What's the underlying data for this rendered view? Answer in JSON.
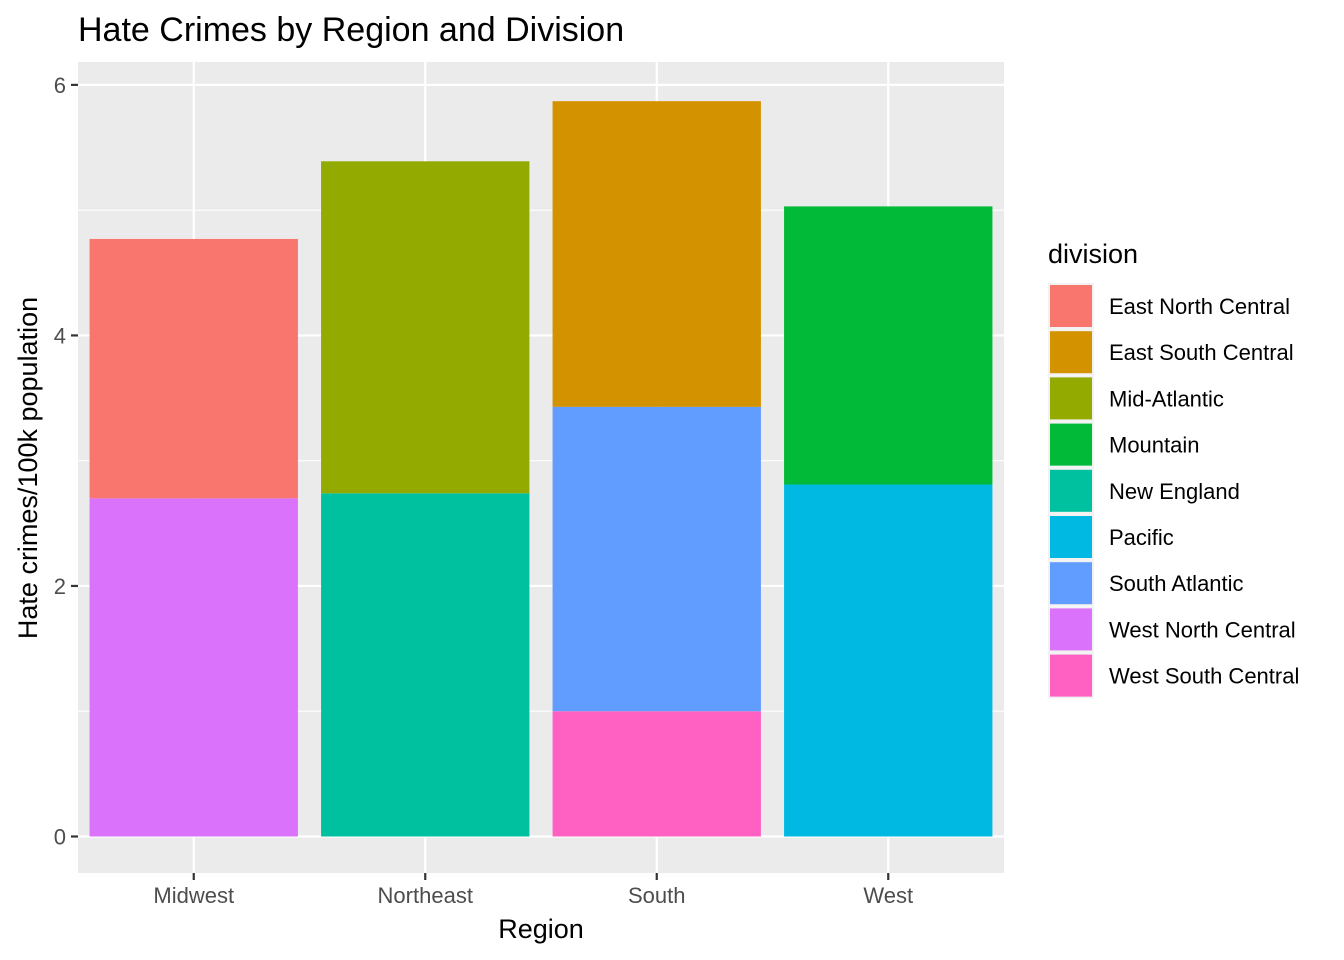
{
  "chart_data": {
    "type": "bar",
    "stacked": true,
    "title": "Hate Crimes by Region and Division",
    "xlabel": "Region",
    "ylabel": "Hate crimes/100k population",
    "categories": [
      "Midwest",
      "Northeast",
      "South",
      "West"
    ],
    "ylim": [
      -0.3,
      6.2
    ],
    "yticks": [
      0,
      2,
      4,
      6
    ],
    "grid": true,
    "legend": {
      "title": "division",
      "placement": "right",
      "entries": [
        {
          "name": "East North Central",
          "color": "#F8766D"
        },
        {
          "name": "East South Central",
          "color": "#D39200"
        },
        {
          "name": "Mid-Atlantic",
          "color": "#93AA00"
        },
        {
          "name": "Mountain",
          "color": "#00BA38"
        },
        {
          "name": "New England",
          "color": "#00C19F"
        },
        {
          "name": "Pacific",
          "color": "#00B9E3"
        },
        {
          "name": "South Atlantic",
          "color": "#619CFF"
        },
        {
          "name": "West North Central",
          "color": "#DB72FB"
        },
        {
          "name": "West South Central",
          "color": "#FF61C3"
        }
      ]
    },
    "series": [
      {
        "name": "East North Central",
        "values": [
          2.07,
          0,
          0,
          0
        ]
      },
      {
        "name": "East South Central",
        "values": [
          0,
          0,
          2.44,
          0
        ]
      },
      {
        "name": "Mid-Atlantic",
        "values": [
          0,
          2.65,
          0,
          0
        ]
      },
      {
        "name": "Mountain",
        "values": [
          0,
          0,
          0,
          2.22
        ]
      },
      {
        "name": "New England",
        "values": [
          0,
          2.74,
          0,
          0
        ]
      },
      {
        "name": "Pacific",
        "values": [
          0,
          0,
          0,
          2.81
        ]
      },
      {
        "name": "South Atlantic",
        "values": [
          0,
          0,
          2.43,
          0
        ]
      },
      {
        "name": "West North Central",
        "values": [
          2.7,
          0,
          0,
          0
        ]
      },
      {
        "name": "West South Central",
        "values": [
          0,
          0,
          1.0,
          0
        ]
      }
    ],
    "stack_order_bottom_to_top": [
      "West South Central",
      "West North Central",
      "South Atlantic",
      "Pacific",
      "New England",
      "Mountain",
      "Mid-Atlantic",
      "East South Central",
      "East North Central"
    ],
    "colors": {
      "panel_background": "#EBEBEB",
      "grid": "#FFFFFF",
      "tick": "#333333"
    }
  }
}
